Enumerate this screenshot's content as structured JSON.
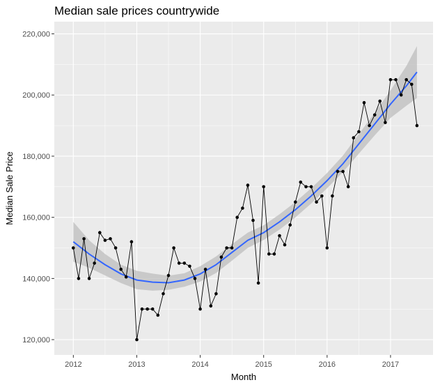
{
  "chart_data": {
    "type": "line",
    "title": "Median sale prices countrywide",
    "xlabel": "Month",
    "ylabel": "Median Sale Price",
    "x_tick_labels": [
      "2012",
      "2013",
      "2014",
      "2015",
      "2016",
      "2017"
    ],
    "y_tick_labels": [
      "120,000",
      "140,000",
      "160,000",
      "180,000",
      "200,000",
      "220,000"
    ],
    "x_ticks": [
      2012,
      2013,
      2014,
      2015,
      2016,
      2017
    ],
    "y_ticks": [
      120000,
      140000,
      160000,
      180000,
      200000,
      220000
    ],
    "xlim": [
      2011.7,
      2017.67
    ],
    "ylim": [
      115000,
      224000
    ],
    "grid": true,
    "background": "#ebebeb",
    "series": [
      {
        "kind": "observed",
        "color": "#000000",
        "x": [
          2012.0,
          2012.083,
          2012.167,
          2012.25,
          2012.333,
          2012.417,
          2012.5,
          2012.583,
          2012.667,
          2012.75,
          2012.833,
          2012.917,
          2013.0,
          2013.083,
          2013.167,
          2013.25,
          2013.333,
          2013.417,
          2013.5,
          2013.583,
          2013.667,
          2013.75,
          2013.833,
          2013.917,
          2014.0,
          2014.083,
          2014.167,
          2014.25,
          2014.333,
          2014.417,
          2014.5,
          2014.583,
          2014.667,
          2014.75,
          2014.833,
          2014.917,
          2015.0,
          2015.083,
          2015.167,
          2015.25,
          2015.333,
          2015.417,
          2015.5,
          2015.583,
          2015.667,
          2015.75,
          2015.833,
          2015.917,
          2016.0,
          2016.083,
          2016.167,
          2016.25,
          2016.333,
          2016.417,
          2016.5,
          2016.583,
          2016.667,
          2016.75,
          2016.833,
          2016.917,
          2017.0,
          2017.083,
          2017.167,
          2017.25,
          2017.333,
          2017.417
        ],
        "y": [
          150000,
          140000,
          153000,
          140000,
          145000,
          155000,
          152500,
          153000,
          150000,
          143000,
          140500,
          152000,
          120000,
          130000,
          130000,
          130000,
          128000,
          135000,
          141000,
          150000,
          145000,
          145000,
          144000,
          140000,
          130000,
          143000,
          131000,
          135000,
          147000,
          150000,
          150000,
          160000,
          163000,
          170500,
          159000,
          138500,
          170000,
          148000,
          148000,
          154000,
          151000,
          157500,
          165000,
          171500,
          170000,
          170000,
          165000,
          167000,
          150000,
          167000,
          175000,
          175000,
          170000,
          186000,
          188000,
          197500,
          190000,
          193500,
          198000,
          191000,
          205000,
          205000,
          200000,
          205000,
          203500,
          190000
        ]
      },
      {
        "kind": "smooth",
        "color": "#3366ff",
        "band_color": "#bdbdbd",
        "x": [
          2012.0,
          2012.25,
          2012.5,
          2012.75,
          2013.0,
          2013.25,
          2013.5,
          2013.75,
          2014.0,
          2014.25,
          2014.5,
          2014.75,
          2015.0,
          2015.25,
          2015.5,
          2015.75,
          2016.0,
          2016.25,
          2016.5,
          2016.75,
          2017.0,
          2017.25,
          2017.417
        ],
        "y": [
          152000,
          148000,
          144500,
          141500,
          139500,
          138800,
          138600,
          139500,
          141500,
          144500,
          148500,
          152500,
          155000,
          158500,
          162500,
          167000,
          172000,
          177500,
          184000,
          190500,
          197000,
          203000,
          207500
        ],
        "lower": [
          145500,
          143500,
          141000,
          138500,
          136500,
          136000,
          136300,
          137300,
          139000,
          141800,
          145800,
          150000,
          152600,
          156000,
          160000,
          164500,
          169500,
          174800,
          180800,
          186800,
          192500,
          196500,
          199000
        ],
        "upper": [
          158500,
          152500,
          148000,
          144500,
          142500,
          141600,
          140900,
          141700,
          144000,
          147200,
          151200,
          155000,
          157400,
          161000,
          165000,
          169500,
          174500,
          180200,
          187200,
          194200,
          201500,
          209500,
          216000
        ]
      }
    ]
  }
}
